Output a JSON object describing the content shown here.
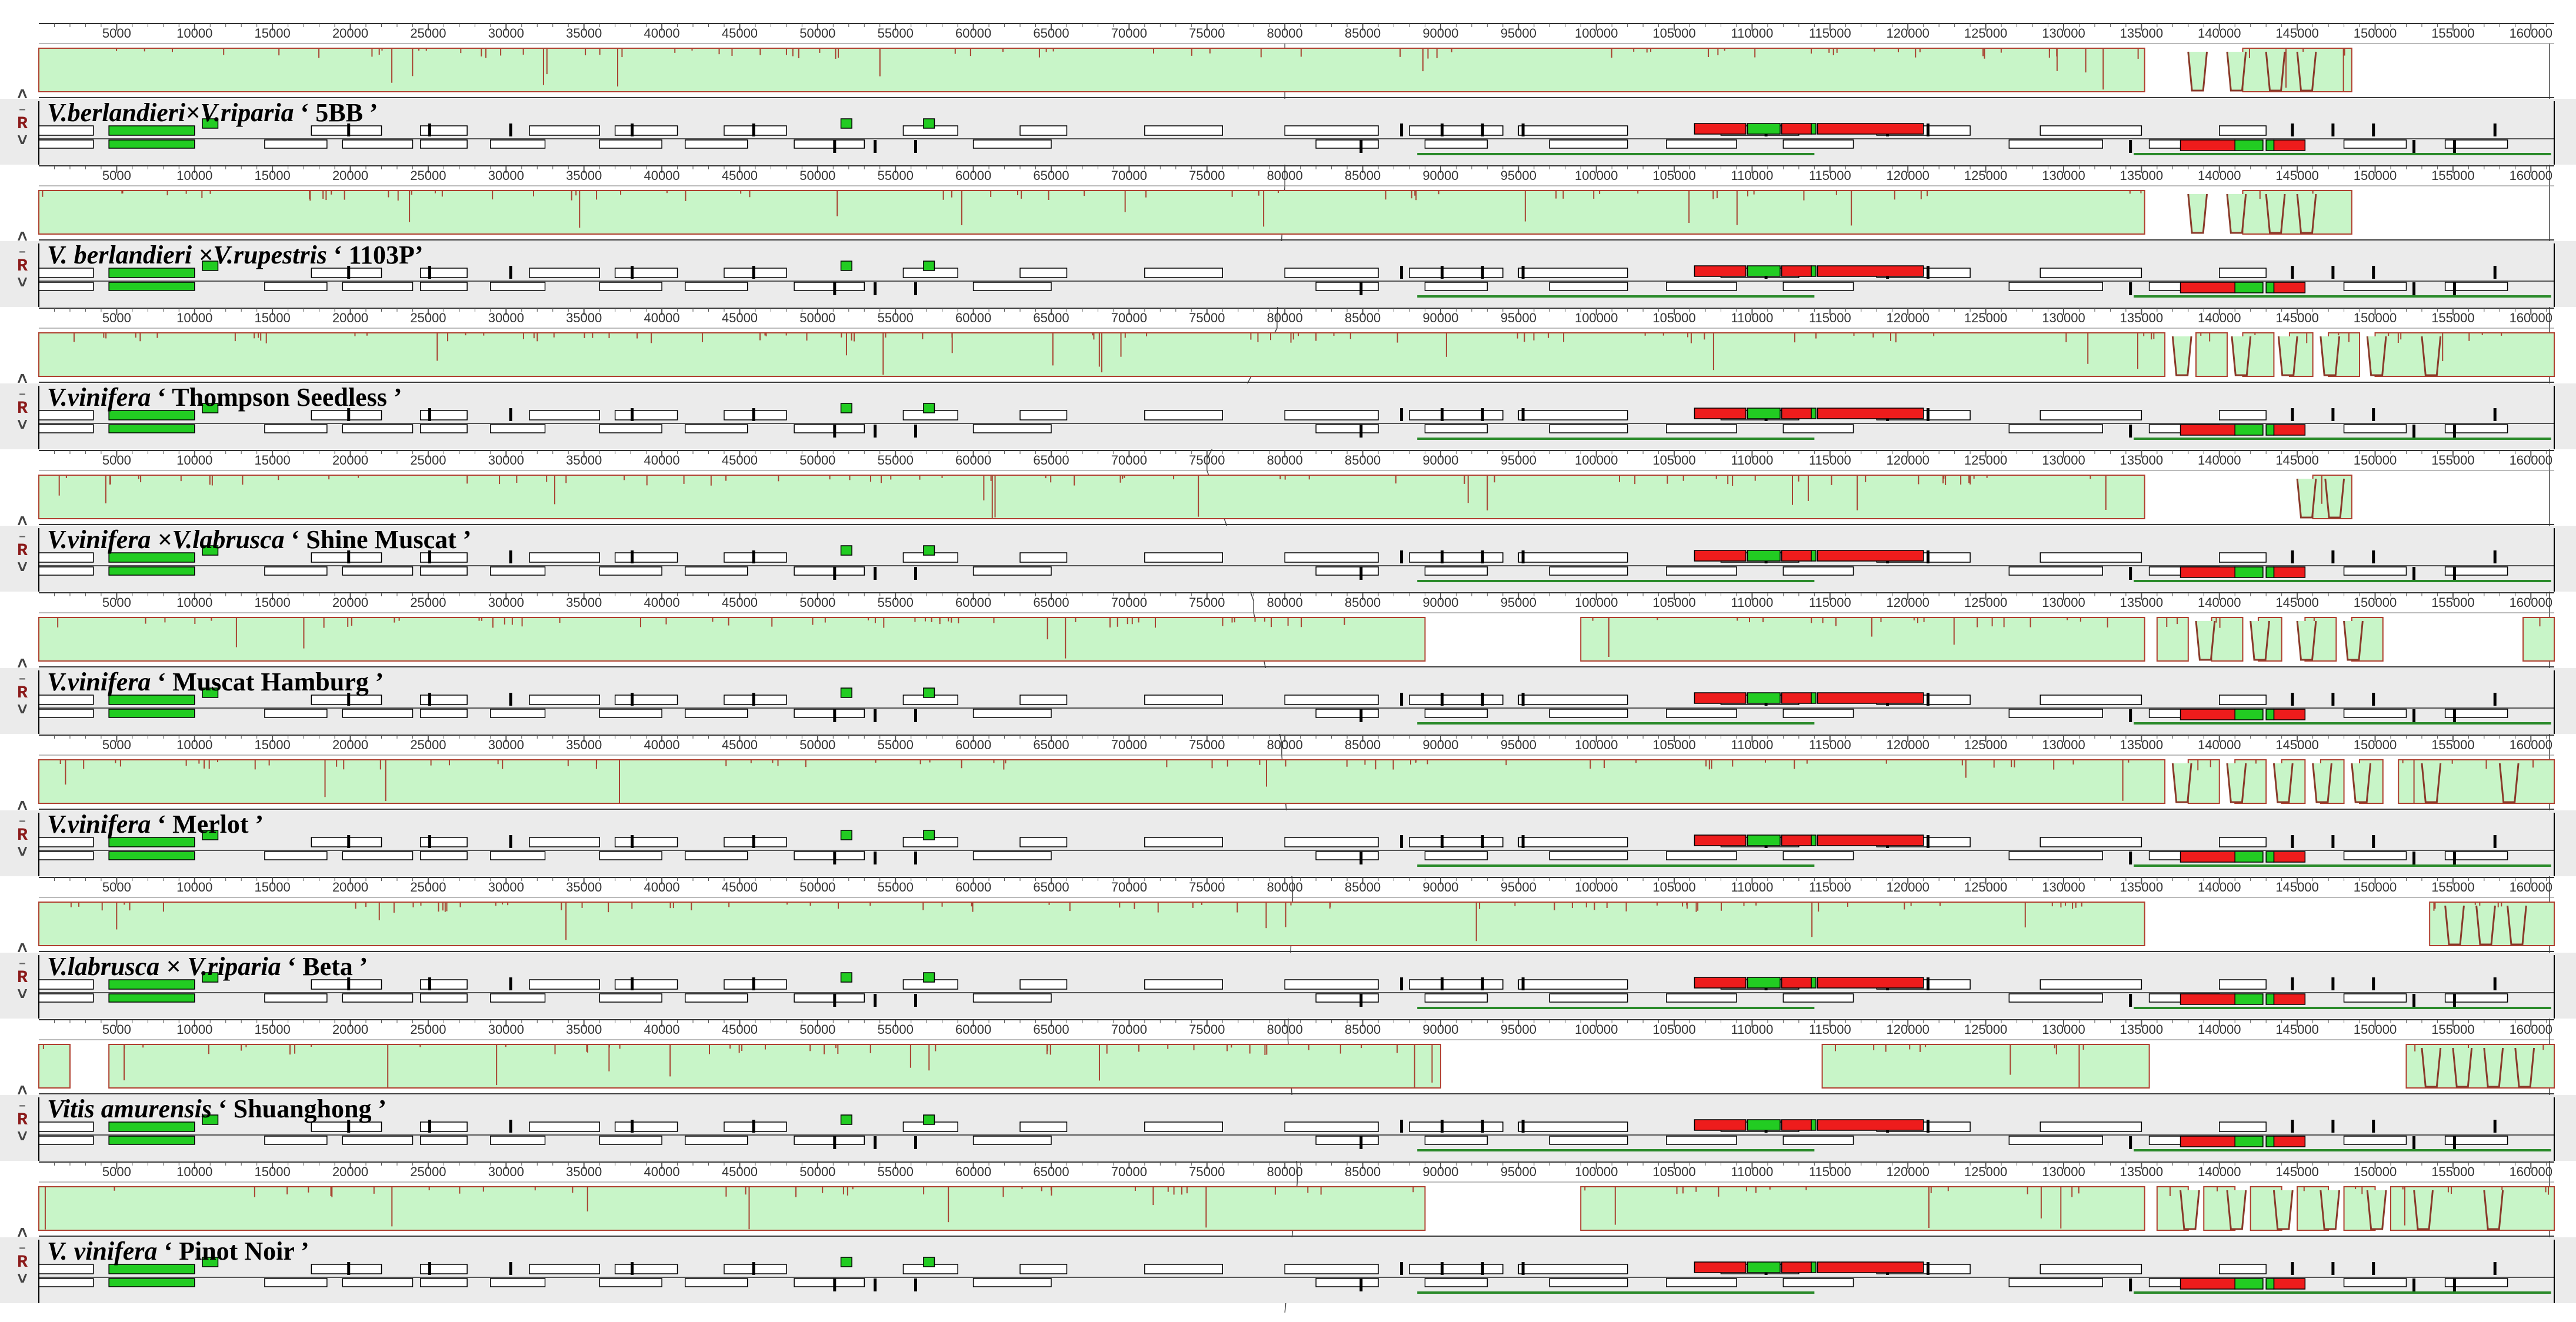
{
  "axis": {
    "ticks": [
      5000,
      10000,
      15000,
      20000,
      25000,
      30000,
      35000,
      40000,
      45000,
      50000,
      55000,
      60000,
      65000,
      70000,
      75000,
      80000,
      85000,
      90000,
      95000,
      100000,
      105000,
      110000,
      115000,
      120000,
      125000,
      130000,
      135000,
      140000,
      145000,
      150000,
      155000,
      160000
    ],
    "max": 161500
  },
  "controls": {
    "up": "˄",
    "minus": "–",
    "reverse": "R",
    "down": "˅"
  },
  "colors": {
    "identity": "#c8f5c8",
    "identity_border": "#3a3a3a",
    "dip": "#a84432",
    "gene_fill": "#ffffff",
    "gene_stroke": "#000000",
    "rRNA": "#ee1c1c",
    "tRNA_green": "#22cc22",
    "track_bg": "#ebebeb",
    "underline": "#2a8a2a"
  },
  "genomes": [
    {
      "title_species": "V.berlandieri×V.riparia",
      "title_cultivar": "‘ 5BB ’",
      "blocks": [
        [
          0,
          135200
        ],
        [
          141500,
          148500
        ]
      ],
      "gap_starts": [
        138000,
        140500,
        143000,
        145000
      ]
    },
    {
      "title_species": "V. berlandieri ×V.rupestris",
      "title_cultivar": "‘ 1103P’",
      "blocks": [
        [
          0,
          135200
        ],
        [
          141500,
          148500
        ]
      ],
      "gap_starts": [
        138000,
        140500,
        143000,
        145000
      ]
    },
    {
      "title_species": "V.vinifera",
      "title_cultivar": "‘ Thompson Seedless ’",
      "blocks": [
        [
          0,
          136500
        ],
        [
          138500,
          140500
        ],
        [
          141500,
          143500
        ],
        [
          144500,
          146000
        ],
        [
          147000,
          149000
        ],
        [
          150000,
          161500
        ]
      ],
      "gap_starts": [
        137000,
        140800,
        143800,
        146500,
        149500,
        153000
      ]
    },
    {
      "title_species": "V.vinifera ×V.labrusca",
      "title_cultivar": "‘ Shine Muscat ’",
      "blocks": [
        [
          0,
          135200
        ],
        [
          146000,
          148500
        ]
      ],
      "gap_starts": [
        145000,
        146800
      ]
    },
    {
      "title_species": "V.vinifera",
      "title_cultivar": "‘ Muscat Hamburg ’",
      "blocks": [
        [
          0,
          89000
        ],
        [
          99000,
          135200
        ],
        [
          136000,
          138000
        ],
        [
          139500,
          141500
        ],
        [
          142500,
          144000
        ],
        [
          145500,
          147500
        ],
        [
          148500,
          150500
        ],
        [
          159500,
          161500
        ]
      ],
      "gap_starts": [
        138500,
        142000,
        145000,
        148000
      ]
    },
    {
      "title_species": "V.vinifera",
      "title_cultivar": "‘ Merlot ’",
      "blocks": [
        [
          0,
          136500
        ],
        [
          138000,
          140000
        ],
        [
          141000,
          143000
        ],
        [
          144000,
          145500
        ],
        [
          146500,
          148000
        ],
        [
          149000,
          150500
        ],
        [
          151500,
          161500
        ]
      ],
      "gap_starts": [
        137000,
        140500,
        143500,
        146000,
        148500,
        153000,
        158000
      ]
    },
    {
      "title_species": "V.labrusca × V.riparia",
      "title_cultivar": "‘ Beta ’",
      "blocks": [
        [
          0,
          135200
        ],
        [
          153500,
          161500
        ]
      ],
      "gap_starts": [
        154500,
        156500,
        158500
      ]
    },
    {
      "title_species": "Vitis amurensis",
      "title_cultivar": "‘ Shuanghong ’",
      "blocks": [
        [
          0,
          2000
        ],
        [
          4500,
          90000
        ],
        [
          114500,
          131000
        ],
        [
          131000,
          135500
        ],
        [
          152000,
          161500
        ]
      ],
      "gap_starts": [
        153000,
        155000,
        157000,
        159000
      ]
    },
    {
      "title_species": "V. vinifera",
      "title_cultivar": "‘ Pinot Noir ’",
      "blocks": [
        [
          0,
          89000
        ],
        [
          99000,
          135200
        ],
        [
          136000,
          138000
        ],
        [
          139000,
          141000
        ],
        [
          142000,
          144000
        ],
        [
          145000,
          147000
        ],
        [
          148000,
          150000
        ],
        [
          151000,
          161500
        ]
      ],
      "gap_starts": [
        137500,
        140500,
        143500,
        146500,
        149500,
        152500,
        157000
      ]
    }
  ]
}
